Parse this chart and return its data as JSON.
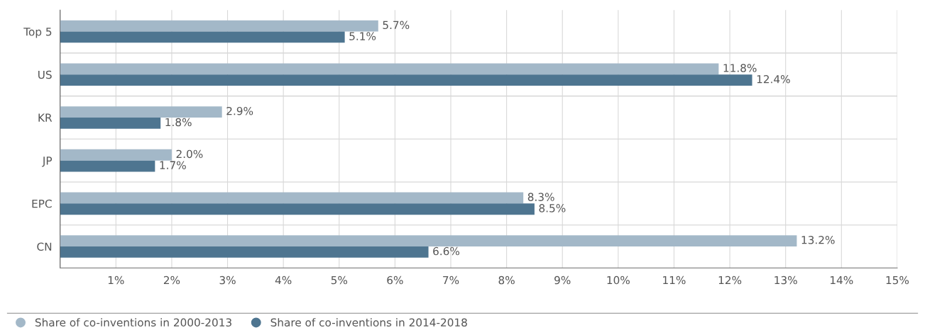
{
  "chart_data": {
    "type": "bar",
    "orientation": "horizontal",
    "categories": [
      "Top 5",
      "US",
      "KR",
      "JP",
      "EPC",
      "CN"
    ],
    "series": [
      {
        "name": "Share of co-inventions in 2000-2013",
        "color": "#a3b8c8",
        "values": [
          5.7,
          11.8,
          2.9,
          2.0,
          8.3,
          13.2
        ],
        "value_labels": [
          "5.7%",
          "11.8%",
          "2.9%",
          "2.0%",
          "8.3%",
          "13.2%"
        ]
      },
      {
        "name": "Share of co-inventions in 2014-2018",
        "color": "#4e7590",
        "values": [
          5.1,
          12.4,
          1.8,
          1.7,
          8.5,
          6.6
        ],
        "value_labels": [
          "5.1%",
          "12.4%",
          "1.8%",
          "1.7%",
          "8.5%",
          "6.6%"
        ]
      }
    ],
    "xlim": [
      0,
      15
    ],
    "xticks": [
      {
        "value": 1,
        "label": "1%"
      },
      {
        "value": 2,
        "label": "2%"
      },
      {
        "value": 3,
        "label": "3%"
      },
      {
        "value": 4,
        "label": "4%"
      },
      {
        "value": 5,
        "label": "5%"
      },
      {
        "value": 6,
        "label": "6%"
      },
      {
        "value": 7,
        "label": "7%"
      },
      {
        "value": 8,
        "label": "8%"
      },
      {
        "value": 9,
        "label": "9%"
      },
      {
        "value": 10,
        "label": "10%"
      },
      {
        "value": 11,
        "label": "11%"
      },
      {
        "value": 12,
        "label": "12%"
      },
      {
        "value": 13,
        "label": "13%"
      },
      {
        "value": 14,
        "label": "14%"
      },
      {
        "value": 15,
        "label": "15%"
      }
    ],
    "grid": "x",
    "legend": "bottom left"
  }
}
